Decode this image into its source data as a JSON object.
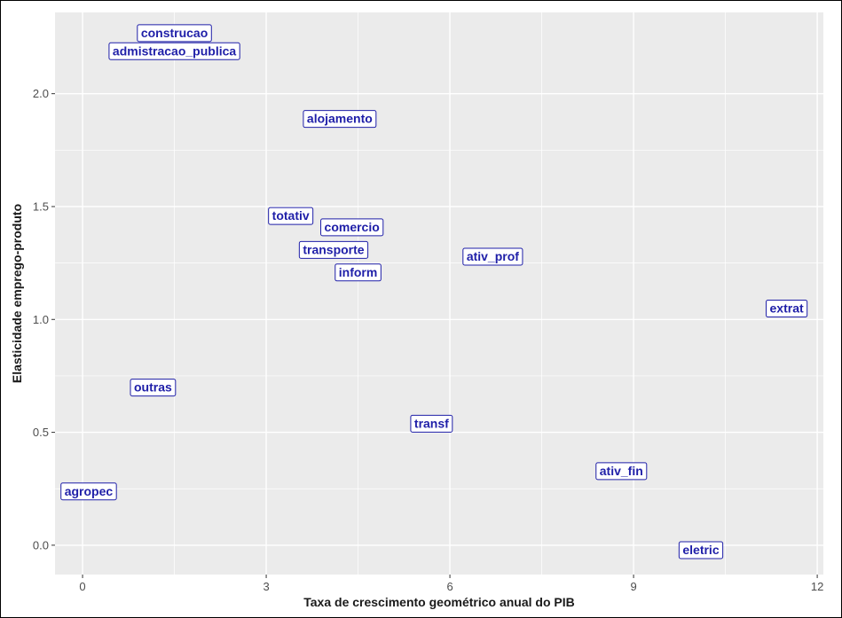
{
  "chart_data": {
    "type": "scatter",
    "xlabel": "Taxa de crescimento geométrico anual do PIB",
    "ylabel": "Elasticidade emprego-produto",
    "xlim": [
      -0.45,
      12.1
    ],
    "ylim": [
      -0.13,
      2.36
    ],
    "x_ticks": [
      0,
      3,
      6,
      9,
      12
    ],
    "y_ticks": [
      0.0,
      0.5,
      1.0,
      1.5,
      2.0
    ],
    "x_tick_labels": [
      "0",
      "3",
      "6",
      "9",
      "12"
    ],
    "y_tick_labels": [
      "0.0",
      "0.5",
      "1.0",
      "1.5",
      "2.0"
    ],
    "grid": true,
    "colors": {
      "panel": "#ebebeb",
      "grid": "#ffffff",
      "label_text": "#1f1fa8",
      "label_border": "#1f1fa8",
      "label_fill": "#ffffff"
    },
    "points": [
      {
        "label": "construcao",
        "x": 1.5,
        "y": 2.27
      },
      {
        "label": "admistracao_publica",
        "x": 1.5,
        "y": 2.19
      },
      {
        "label": "alojamento",
        "x": 4.2,
        "y": 1.89
      },
      {
        "label": "totativ",
        "x": 3.4,
        "y": 1.46
      },
      {
        "label": "comercio",
        "x": 4.4,
        "y": 1.41
      },
      {
        "label": "transporte",
        "x": 4.1,
        "y": 1.31
      },
      {
        "label": "inform",
        "x": 4.5,
        "y": 1.21
      },
      {
        "label": "ativ_prof",
        "x": 6.7,
        "y": 1.28
      },
      {
        "label": "extrat",
        "x": 11.5,
        "y": 1.05
      },
      {
        "label": "outras",
        "x": 1.15,
        "y": 0.7
      },
      {
        "label": "transf",
        "x": 5.7,
        "y": 0.54
      },
      {
        "label": "ativ_fin",
        "x": 8.8,
        "y": 0.33
      },
      {
        "label": "agropec",
        "x": 0.1,
        "y": 0.24
      },
      {
        "label": "eletric",
        "x": 10.1,
        "y": -0.02
      }
    ]
  }
}
